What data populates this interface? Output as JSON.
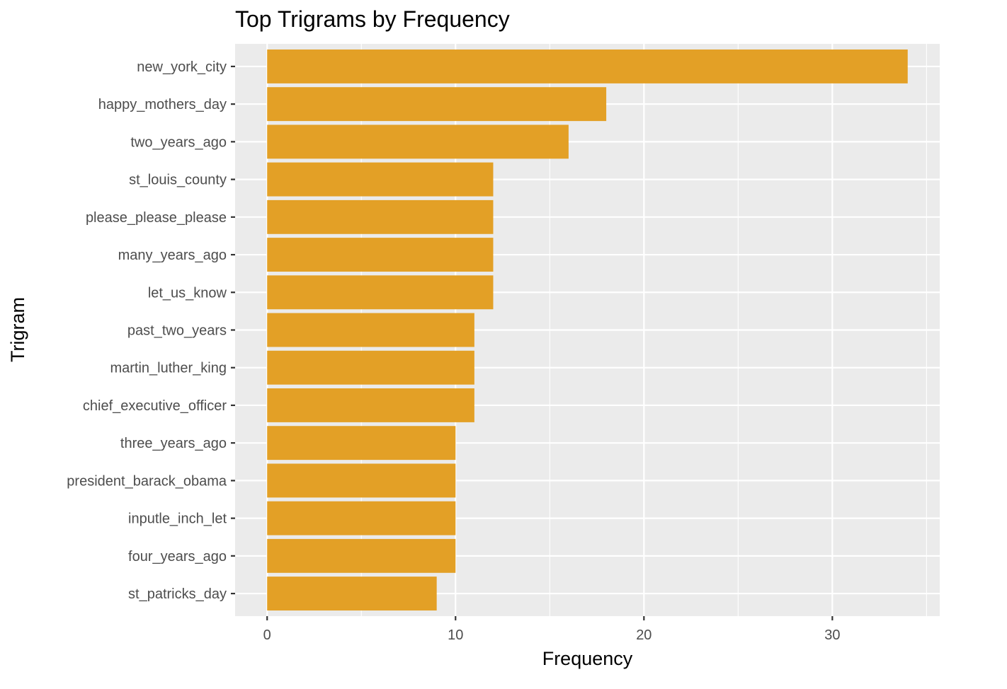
{
  "chart_data": {
    "type": "bar",
    "orientation": "horizontal",
    "title": "Top Trigrams by Frequency",
    "xlabel": "Frequency",
    "ylabel": "Trigram",
    "categories": [
      "new_york_city",
      "happy_mothers_day",
      "two_years_ago",
      "st_louis_county",
      "please_please_please",
      "many_years_ago",
      "let_us_know",
      "past_two_years",
      "martin_luther_king",
      "chief_executive_officer",
      "three_years_ago",
      "president_barack_obama",
      "inputle_inch_let",
      "four_years_ago",
      "st_patricks_day"
    ],
    "values": [
      34,
      18,
      16,
      12,
      12,
      12,
      12,
      11,
      11,
      11,
      10,
      10,
      10,
      10,
      9
    ],
    "xlim": [
      -1.7,
      35.7
    ],
    "x_ticks": [
      0,
      10,
      20,
      30
    ],
    "x_tick_labels": [
      "0",
      "10",
      "20",
      "30"
    ],
    "bar_color": "#E3A026",
    "panel_color": "#EBEBEB",
    "grid": true,
    "legend": "none"
  }
}
